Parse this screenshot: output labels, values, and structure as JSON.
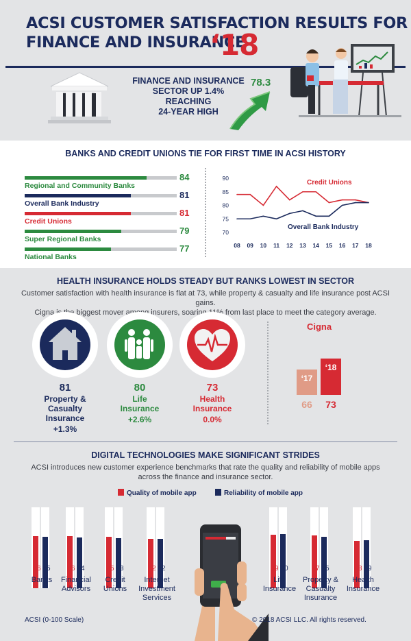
{
  "header": {
    "title_line1": "ACSI CUSTOMER SATISFACTION RESULTS FOR",
    "title_line2": "FINANCE AND INSURANCE",
    "title_year": "‘18",
    "sector_line1": "FINANCE AND INSURANCE",
    "sector_line2": "SECTOR UP 1.4%",
    "sector_line3": "REACHING",
    "sector_line4": "24-YEAR HIGH",
    "sector_score": "78.3"
  },
  "banks": {
    "title": "BANKS AND CREDIT UNIONS TIE FOR FIRST TIME IN ACSI HISTORY"
  },
  "health": {
    "title": "HEALTH INSURANCE HOLDS STEADY BUT RANKS LOWEST IN SECTOR",
    "desc_line1": "Customer satisfaction with health insurance is flat at 73, while property & casualty and life insurance post ACSI gains.",
    "desc_line2": "Cigna is the biggest mover among insurers, soaring 11% from last place to meet the category average.",
    "items": [
      {
        "score": "81",
        "name_lines": [
          "Property &",
          "Casualty",
          "Insurance"
        ],
        "change": "+1.3%",
        "color": "#1b2a5c"
      },
      {
        "score": "80",
        "name_lines": [
          "Life",
          "Insurance"
        ],
        "change": "+2.6%",
        "color": "#2c8a3f"
      },
      {
        "score": "73",
        "name_lines": [
          "Health",
          "Insurance"
        ],
        "change": "0.0%",
        "color": "#d62a33"
      }
    ]
  },
  "digital": {
    "title": "DIGITAL TECHNOLOGIES MAKE SIGNIFICANT STRIDES",
    "desc_line1": "ACSI introduces new customer experience benchmarks that rate the quality and reliability of mobile apps",
    "desc_line2": "across the finance and insurance sector.",
    "legend_quality": "Quality of mobile app",
    "legend_reliability": "Reliability of mobile app",
    "footer_scale": "ACSI (0-100 Scale)",
    "footer_copyright": "© 2018 ACSI LLC. All rights reserved."
  },
  "colors": {
    "navy": "#1b2a5c",
    "red": "#d62a33",
    "green": "#2c8a3f",
    "gray_bar": "#c8cacd",
    "cigna_2017": "#e09b86"
  },
  "chart_data": [
    {
      "type": "bar",
      "orientation": "horizontal",
      "categories": [
        "Regional and Community Banks",
        "Overall Bank Industry",
        "Credit Unions",
        "Super Regional Banks",
        "National Banks"
      ],
      "values": [
        84,
        81,
        81,
        79,
        77
      ],
      "colors": [
        "#2c8a3f",
        "#1b2a5c",
        "#d62a33",
        "#2c8a3f",
        "#2c8a3f"
      ]
    },
    {
      "type": "line",
      "x": [
        "08",
        "09",
        "10",
        "11",
        "12",
        "13",
        "14",
        "15",
        "16",
        "17",
        "18"
      ],
      "series": [
        {
          "name": "Credit Unions",
          "values": [
            84,
            84,
            80,
            87,
            82,
            85,
            85,
            81,
            82,
            82,
            81
          ],
          "color": "#d62a33"
        },
        {
          "name": "Overall Bank Industry",
          "values": [
            75,
            75,
            76,
            75,
            77,
            78,
            76,
            76,
            80,
            81,
            81
          ],
          "color": "#1b2a5c"
        }
      ],
      "yticks": [
        "90",
        "85",
        "80",
        "75",
        "70"
      ],
      "ylim": [
        70,
        90
      ]
    },
    {
      "type": "bar",
      "title": "Cigna",
      "categories": [
        "‘17",
        "‘18"
      ],
      "values": [
        66,
        73
      ],
      "colors": [
        "#e09b86",
        "#d62a33"
      ],
      "ylim": [
        0,
        100
      ]
    },
    {
      "type": "bar",
      "categories": [
        [
          "Banks"
        ],
        [
          "Financial",
          "Advisors"
        ],
        [
          "Credit",
          "Unions"
        ],
        [
          "Internet",
          "Investment",
          "Services"
        ],
        [
          "Life",
          "Insurance"
        ],
        [
          "Property &",
          "Casualty",
          "Insurance"
        ],
        [
          "Health",
          "Insurance"
        ]
      ],
      "series": [
        {
          "name": "Quality of mobile app",
          "values": [
            86,
            86,
            85,
            82,
            89,
            87,
            78
          ],
          "color": "#d62a33"
        },
        {
          "name": "Reliability of mobile app",
          "values": [
            85,
            84,
            83,
            82,
            90,
            85,
            79
          ],
          "color": "#1b2a5c"
        }
      ],
      "ylim": [
        0,
        100
      ]
    }
  ]
}
